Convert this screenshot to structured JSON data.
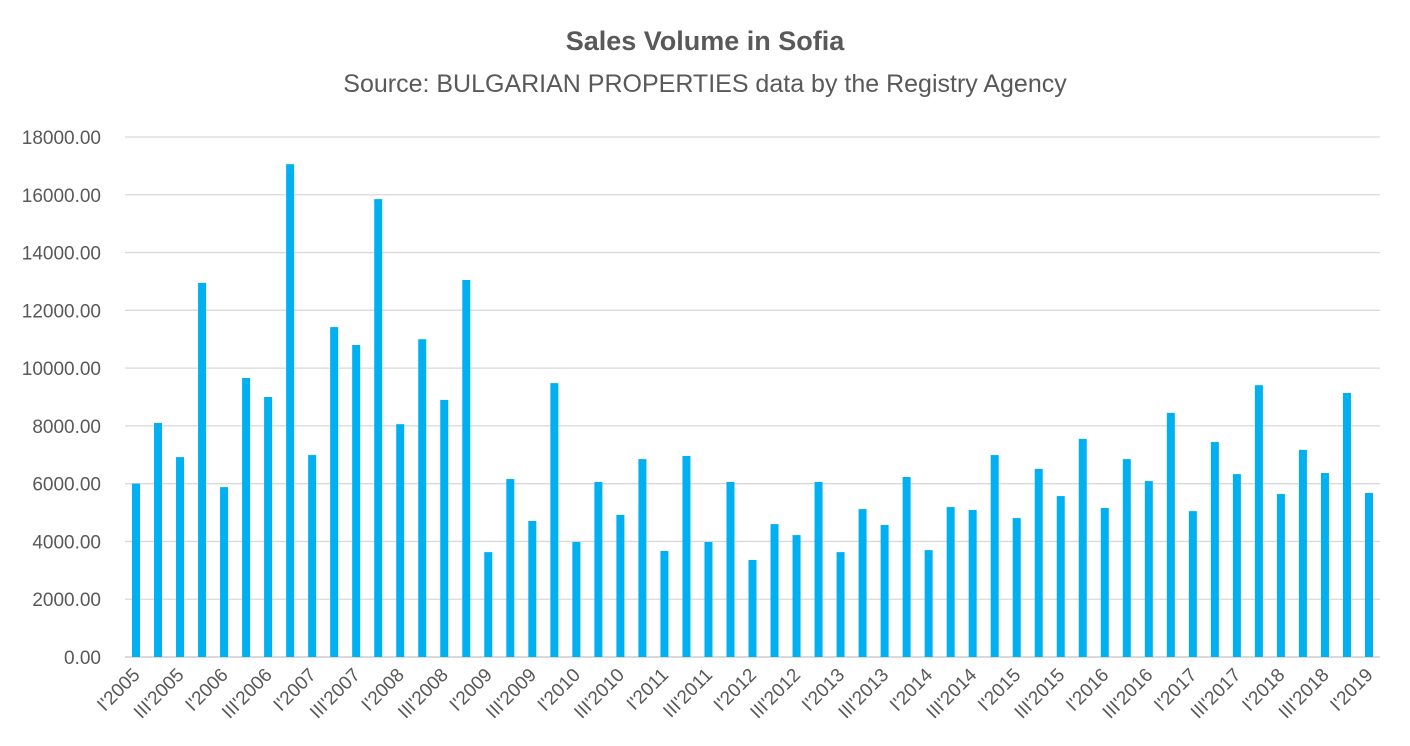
{
  "chart_data": {
    "type": "bar",
    "title": "Sales Volume in Sofia",
    "subtitle": "Source: BULGARIAN PROPERTIES data by the Registry Agency",
    "xlabel": "",
    "ylabel": "",
    "ylim": [
      0,
      18000
    ],
    "y_ticks": [
      "0.00",
      "2000.00",
      "4000.00",
      "6000.00",
      "8000.00",
      "10000.00",
      "12000.00",
      "14000.00",
      "16000.00",
      "18000.00"
    ],
    "x_tick_labels": [
      "I'2005",
      "III'2005",
      "I'2006",
      "III'2006",
      "I'2007",
      "III'2007",
      "I'2008",
      "III'2008",
      "I'2009",
      "III'2009",
      "I'2010",
      "III'2010",
      "I'2011",
      "III'2011",
      "I'2012",
      "III'2012",
      "I'2013",
      "III'2013",
      "I'2014",
      "III'2014",
      "I'2015",
      "III'2015",
      "I'2016",
      "III'2016",
      "I'2017",
      "III'2017",
      "I'2018",
      "III'2018",
      "I'2019"
    ],
    "values": [
      6000,
      8100,
      6920,
      12950,
      5880,
      9660,
      9000,
      17060,
      6990,
      11420,
      10800,
      15850,
      8060,
      11000,
      8900,
      13050,
      3630,
      6160,
      4710,
      9480,
      3980,
      6060,
      4920,
      6850,
      3670,
      6960,
      3980,
      6060,
      3360,
      4600,
      4220,
      6060,
      3630,
      5120,
      4570,
      6230,
      3700,
      5190,
      5090,
      6990,
      4810,
      6510,
      5570,
      7550,
      5160,
      6850,
      6090,
      8450,
      5050,
      7440,
      6330,
      9410,
      5640,
      7170,
      6370,
      9140,
      5680
    ],
    "grid": true,
    "legend": "none",
    "colors": {
      "bar": "#00B0F0",
      "grid": "#D9D9D9",
      "text": "#595959"
    }
  }
}
